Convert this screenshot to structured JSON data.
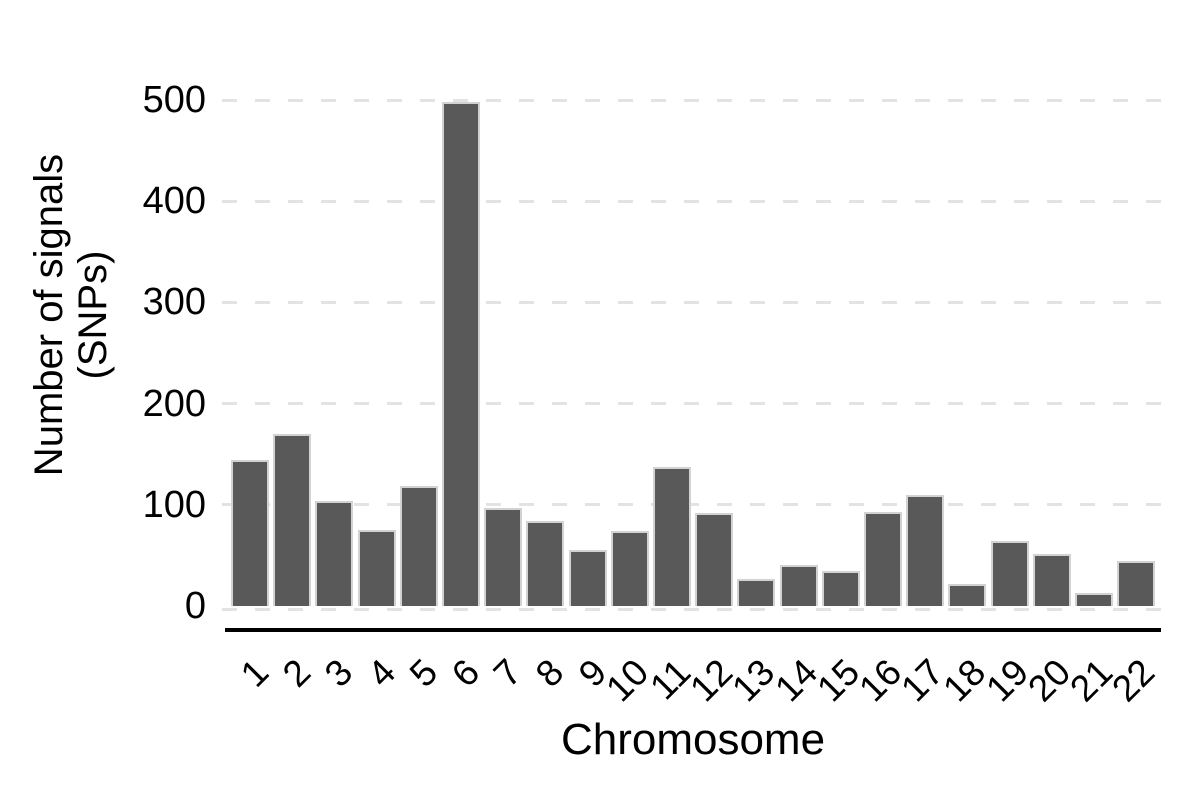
{
  "chart_data": {
    "type": "bar",
    "title": "",
    "xlabel": "Chromosome",
    "ylabel": "Number of signals\n(SNPs)",
    "categories": [
      "1",
      "2",
      "3",
      "4",
      "5",
      "6",
      "7",
      "8",
      "9",
      "10",
      "11",
      "12",
      "13",
      "14",
      "15",
      "16",
      "17",
      "18",
      "19",
      "20",
      "21",
      "22"
    ],
    "values": [
      144,
      170,
      104,
      75,
      119,
      498,
      97,
      84,
      55,
      74,
      137,
      92,
      27,
      41,
      35,
      93,
      110,
      22,
      64,
      51,
      13,
      44
    ],
    "ylim": [
      0,
      500
    ],
    "yticks": [
      0,
      100,
      200,
      300,
      400,
      500
    ],
    "legend": "none",
    "grid": {
      "axis": "y",
      "style": "dashed",
      "color": "#e3e3e3"
    },
    "colors": {
      "bar_fill": "#595959",
      "bar_border": "#d2d2d2",
      "axis_line": "#000000",
      "text": "#000000",
      "background": "#ffffff"
    }
  }
}
